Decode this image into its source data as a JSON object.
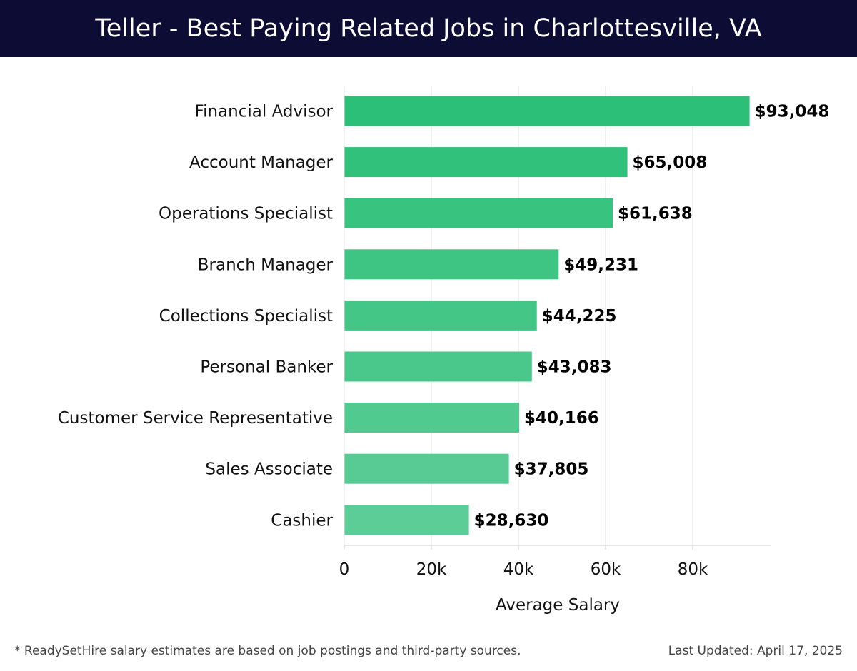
{
  "header": {
    "title": "Teller - Best Paying Related Jobs in Charlottesville, VA"
  },
  "footer": {
    "note": "* ReadySetHire salary estimates are based on job postings and third-party sources.",
    "updated": "Last Updated: April 17, 2025"
  },
  "chart_data": {
    "type": "bar",
    "orientation": "horizontal",
    "categories": [
      "Financial Advisor",
      "Account Manager",
      "Operations Specialist",
      "Branch Manager",
      "Collections Specialist",
      "Personal Banker",
      "Customer Service Representative",
      "Sales Associate",
      "Cashier"
    ],
    "values": [
      93048,
      65008,
      61638,
      49231,
      44225,
      43083,
      40166,
      37805,
      28630
    ],
    "value_labels": [
      "$93,048",
      "$65,008",
      "$61,638",
      "$49,231",
      "$44,225",
      "$43,083",
      "$40,166",
      "$37,805",
      "$28,630"
    ],
    "xlabel": "Average Salary",
    "ylabel": "",
    "xticks": [
      0,
      20000,
      40000,
      60000,
      80000
    ],
    "xtick_labels": [
      "0",
      "20k",
      "40k",
      "60k",
      "80k"
    ],
    "xlim": [
      0,
      98000
    ],
    "grid": "vertical",
    "bar_color_dark": "#2bbf77",
    "bar_color_light": "#5dcd97"
  }
}
